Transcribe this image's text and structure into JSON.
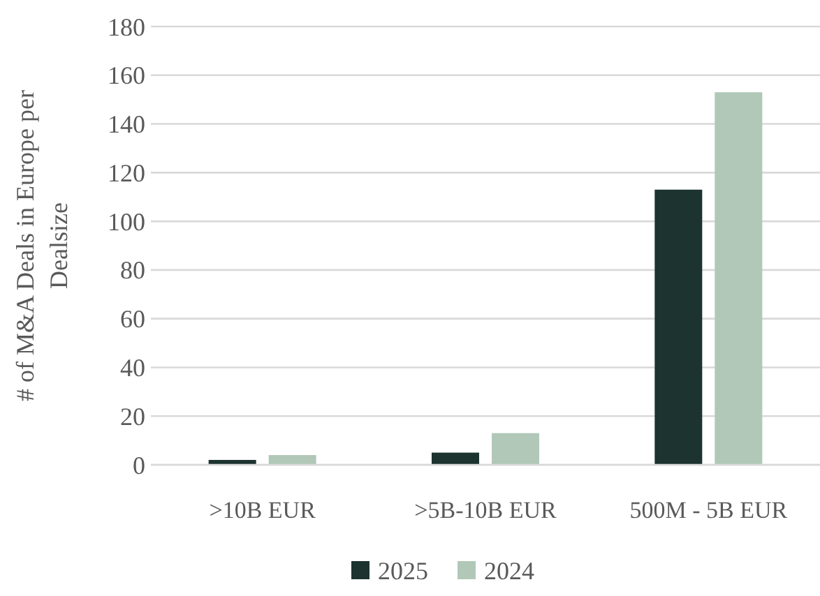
{
  "chart_data": {
    "type": "bar",
    "ylabel": "# of M&A Deals in Europe per Dealsize",
    "categories": [
      ">10B EUR",
      ">5B-10B EUR",
      "500M - 5B EUR"
    ],
    "series": [
      {
        "name": "2025",
        "color": "#1c3330",
        "values": [
          2,
          5,
          113
        ]
      },
      {
        "name": "2024",
        "color": "#b1c8b8",
        "values": [
          4,
          13,
          153
        ]
      }
    ],
    "ylim": [
      0,
      180
    ],
    "yticks": [
      0,
      20,
      40,
      60,
      80,
      100,
      120,
      140,
      160,
      180
    ],
    "grid": "y",
    "legend": "bottom"
  }
}
